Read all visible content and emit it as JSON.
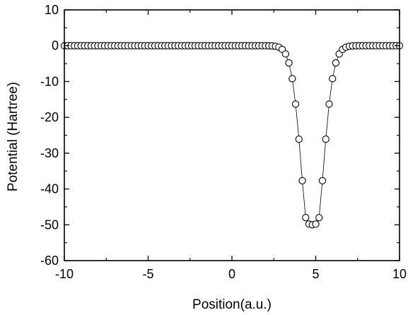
{
  "chart_data": {
    "type": "scatter",
    "xlabel": "Position(a.u.)",
    "ylabel": "Potential (Hartree)",
    "xlim": [
      -10,
      10
    ],
    "ylim": [
      -60,
      10
    ],
    "grid": false,
    "x_ticks": [
      -10,
      -5,
      0,
      5,
      10
    ],
    "y_ticks": [
      10,
      0,
      -10,
      -20,
      -30,
      -40,
      -50,
      -60
    ],
    "x_tick_labels": [
      "-10",
      "-5",
      "0",
      "5",
      "10"
    ],
    "y_tick_labels": [
      "10",
      "0",
      "-10",
      "-20",
      "-30",
      "-40",
      "-50",
      "-60"
    ],
    "marker": "open-circle",
    "connected": true,
    "marker_color": "#000000",
    "series": [
      {
        "x": [
          -10,
          -9.8,
          -9.6,
          -9.4,
          -9.2,
          -9,
          -8.8,
          -8.6,
          -8.4,
          -8.2,
          -8,
          -7.8,
          -7.6,
          -7.4,
          -7.2,
          -7,
          -6.8,
          -6.6,
          -6.4,
          -6.2,
          -6,
          -5.8,
          -5.6,
          -5.4,
          -5.2,
          -5,
          -4.8,
          -4.6,
          -4.4,
          -4.2,
          -4,
          -3.8,
          -3.6,
          -3.4,
          -3.2,
          -3,
          -2.8,
          -2.6,
          -2.4,
          -2.2,
          -2,
          -1.8,
          -1.6,
          -1.4,
          -1.2,
          -1,
          -0.8,
          -0.6,
          -0.4,
          -0.2,
          0,
          0.2,
          0.4,
          0.6,
          0.8,
          1,
          1.2,
          1.4,
          1.6,
          1.8,
          2,
          2.2,
          2.4,
          2.6,
          2.8,
          3,
          3.2,
          3.4,
          3.6,
          3.8,
          4,
          4.2,
          4.4,
          4.6,
          4.8,
          5,
          5.2,
          5.4,
          5.6,
          5.8,
          6,
          6.2,
          6.4,
          6.6,
          6.8,
          7,
          7.2,
          7.4,
          7.6,
          7.8,
          8,
          8.2,
          8.4,
          8.6,
          8.8,
          9,
          9.2,
          9.4,
          9.6,
          9.8,
          10
        ],
        "y": [
          0,
          0,
          0,
          0,
          0,
          0,
          0,
          0,
          0,
          0,
          0,
          0,
          0,
          0,
          0,
          0,
          0,
          0,
          0,
          0,
          0,
          0,
          0,
          0,
          0,
          0,
          0,
          0,
          0,
          0,
          0,
          0,
          0,
          0,
          0,
          0,
          0,
          0,
          0,
          0,
          0,
          0,
          0,
          0,
          0,
          0,
          0,
          0,
          0,
          0,
          0,
          0,
          0,
          0,
          0,
          0,
          0,
          0,
          0,
          0,
          -0.01,
          -0.02,
          -0.06,
          -0.16,
          -0.42,
          -1.02,
          -2.3,
          -4.8,
          -9.2,
          -16.3,
          -26.1,
          -37.7,
          -48,
          -49.8,
          -50,
          -49.8,
          -48,
          -37.7,
          -26.1,
          -16.3,
          -9.2,
          -4.8,
          -2.3,
          -1.02,
          -0.42,
          -0.16,
          -0.06,
          -0.02,
          -0.01,
          0,
          0,
          0,
          0,
          0,
          0,
          0,
          0,
          0,
          0,
          0,
          0
        ]
      }
    ]
  }
}
